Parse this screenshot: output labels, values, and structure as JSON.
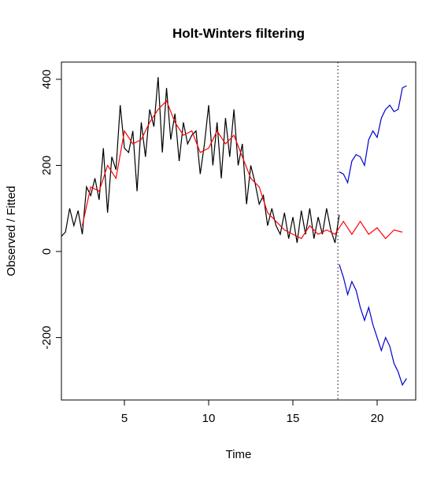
{
  "chart_data": {
    "type": "line",
    "title": "Holt-Winters filtering",
    "xlabel": "Time",
    "ylabel": "Observed / Fitted",
    "xlim": [
      1.26,
      22.29
    ],
    "ylim": [
      -345,
      440
    ],
    "xticks": [
      5,
      10,
      15,
      20
    ],
    "yticks": [
      -200,
      0,
      200,
      400
    ],
    "vline_x": 17.67,
    "series": [
      {
        "color": "#000000",
        "x": [
          1.25,
          1.5,
          1.75,
          2.0,
          2.25,
          2.5,
          2.75,
          3.0,
          3.25,
          3.5,
          3.75,
          4.0,
          4.25,
          4.5,
          4.75,
          5.0,
          5.25,
          5.5,
          5.75,
          6.0,
          6.25,
          6.5,
          6.75,
          7.0,
          7.25,
          7.5,
          7.75,
          8.0,
          8.25,
          8.5,
          8.75,
          9.0,
          9.25,
          9.5,
          9.75,
          10.0,
          10.25,
          10.5,
          10.75,
          11.0,
          11.25,
          11.5,
          11.75,
          12.0,
          12.25,
          12.5,
          12.75,
          13.0,
          13.25,
          13.5,
          13.75,
          14.0,
          14.25,
          14.5,
          14.75,
          15.0,
          15.25,
          15.5,
          15.75,
          16.0,
          16.25,
          16.5,
          16.75,
          17.0,
          17.25,
          17.5,
          17.75
        ],
        "values": [
          35,
          45,
          100,
          60,
          95,
          40,
          150,
          130,
          170,
          120,
          240,
          90,
          220,
          190,
          340,
          240,
          230,
          280,
          140,
          300,
          220,
          330,
          290,
          405,
          230,
          380,
          260,
          320,
          210,
          300,
          250,
          270,
          280,
          180,
          250,
          340,
          200,
          300,
          170,
          310,
          220,
          330,
          200,
          250,
          110,
          200,
          160,
          110,
          130,
          60,
          100,
          60,
          40,
          90,
          30,
          80,
          20,
          95,
          40,
          100,
          30,
          80,
          40,
          100,
          50,
          20,
          85
        ]
      },
      {
        "color": "#ff0000",
        "x": [
          2.5,
          3.0,
          3.5,
          4.0,
          4.5,
          5.0,
          5.5,
          6.0,
          6.5,
          7.0,
          7.5,
          8.0,
          8.5,
          9.0,
          9.5,
          10.0,
          10.5,
          11.0,
          11.5,
          12.0,
          12.5,
          13.0,
          13.5,
          14.0,
          14.5,
          15.0,
          15.5,
          16.0,
          16.5,
          17.0,
          17.5,
          18.0,
          18.5,
          19.0,
          19.5,
          20.0,
          20.5,
          21.0,
          21.5
        ],
        "values": [
          60,
          150,
          140,
          200,
          170,
          280,
          250,
          260,
          300,
          330,
          350,
          300,
          270,
          280,
          230,
          240,
          280,
          250,
          270,
          220,
          170,
          150,
          90,
          70,
          50,
          40,
          30,
          60,
          40,
          50,
          40,
          70,
          40,
          70,
          40,
          55,
          30,
          50,
          45
        ]
      },
      {
        "color": "#0000cd",
        "x": [
          17.75,
          18.0,
          18.25,
          18.5,
          18.75,
          19.0,
          19.25,
          19.5,
          19.75,
          20.0,
          20.25,
          20.5,
          20.75,
          21.0,
          21.25,
          21.5,
          21.75
        ],
        "values": [
          185,
          180,
          160,
          210,
          225,
          220,
          200,
          260,
          280,
          265,
          310,
          330,
          340,
          325,
          330,
          380,
          385
        ]
      },
      {
        "color": "#0000cd",
        "x": [
          17.75,
          18.0,
          18.25,
          18.5,
          18.75,
          19.0,
          19.25,
          19.5,
          19.75,
          20.0,
          20.25,
          20.5,
          20.75,
          21.0,
          21.25,
          21.5,
          21.75
        ],
        "values": [
          -30,
          -60,
          -100,
          -70,
          -90,
          -130,
          -160,
          -130,
          -170,
          -200,
          -230,
          -200,
          -220,
          -260,
          -280,
          -310,
          -295
        ]
      }
    ]
  }
}
